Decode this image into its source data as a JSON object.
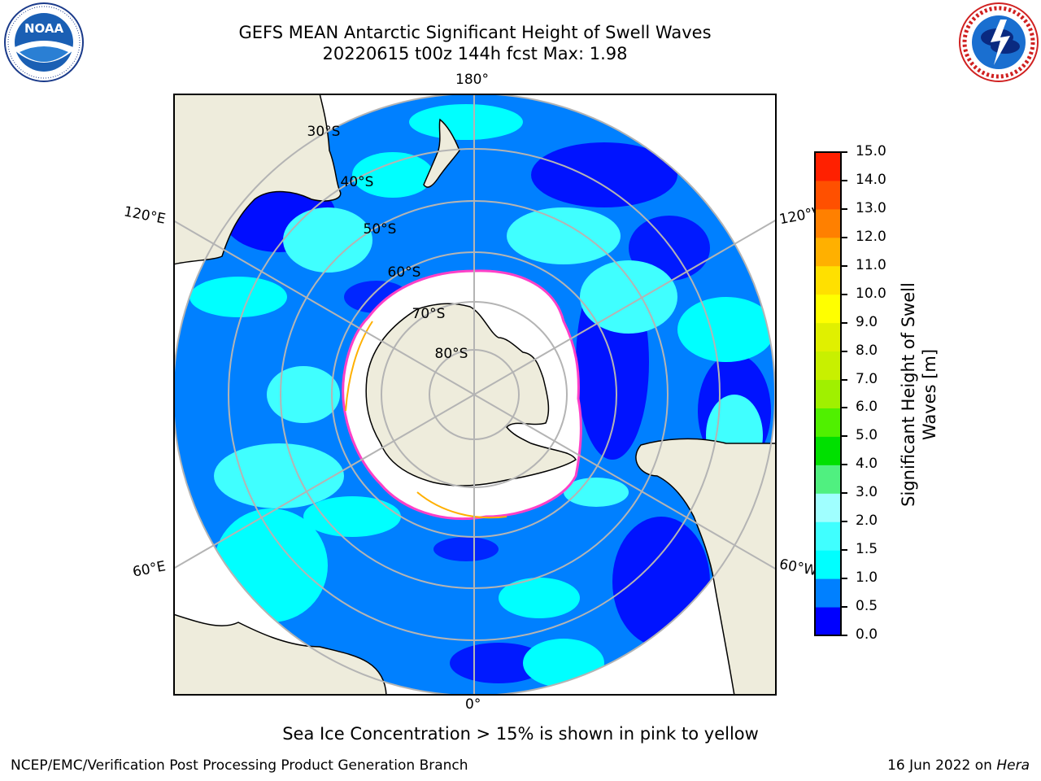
{
  "header": {
    "title_line1": "GEFS MEAN Antarctic Significant Height of Swell Waves",
    "title_line2": "20220615 t00z 144h fcst   Max: 1.98"
  },
  "logos": {
    "noaa_text": "NOAA",
    "noaa_ring": "NATIONAL OCEANIC AND ATMOSPHERIC ADMINISTRATION · U.S. DEPARTMENT OF COMMERCE",
    "nws_ring": "NATIONAL WEATHER SERVICE"
  },
  "map": {
    "projection": "south-polar-stereographic",
    "longitude_labels": {
      "top": "180°",
      "bottom": "0°",
      "left_upper": "120°E",
      "left_lower": "60°E",
      "right_upper": "120°W",
      "right_lower": "60°W"
    },
    "latitude_labels": [
      "30°S",
      "40°S",
      "50°S",
      "60°S",
      "70°S",
      "80°S"
    ],
    "colors": {
      "land": "#eeecdc",
      "sea_ice": "#ffffff",
      "graticule": "#b4b4b4",
      "ice_edge": "#ff40c8"
    }
  },
  "colorbar": {
    "label_line1": "Significant Height of Swell",
    "label_line2": "Waves [m]",
    "ticks": [
      "0.0",
      "0.5",
      "1.0",
      "1.5",
      "2.0",
      "3.0",
      "4.0",
      "5.0",
      "6.0",
      "7.0",
      "8.0",
      "9.0",
      "10.0",
      "11.0",
      "12.0",
      "13.0",
      "14.0",
      "15.0"
    ],
    "colors": [
      "#0000ff",
      "#0080ff",
      "#00ffff",
      "#40ffff",
      "#a0ffff",
      "#50f080",
      "#00e000",
      "#50f000",
      "#a0f000",
      "#c8f000",
      "#e0f000",
      "#ffff00",
      "#ffe000",
      "#ffb000",
      "#ff8000",
      "#ff5000",
      "#ff2000"
    ]
  },
  "notes": {
    "ice": "Sea Ice Concentration > 15% is shown in pink to yellow"
  },
  "footer": {
    "left": "NCEP/EMC/Verification Post Processing Product Generation Branch",
    "date": "16 Jun 2022 on ",
    "machine": "Hera"
  }
}
